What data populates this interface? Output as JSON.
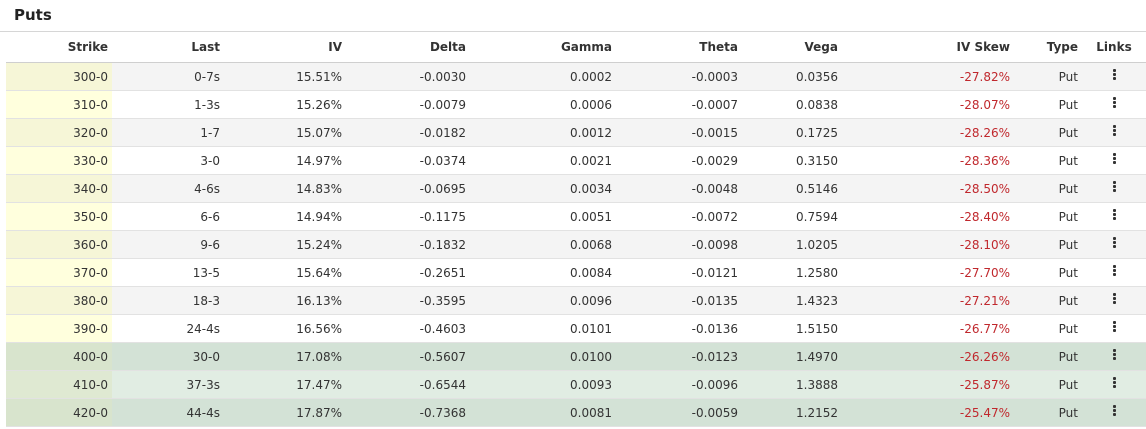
{
  "panel": {
    "title": "Puts"
  },
  "table": {
    "columns": [
      "Strike",
      "Last",
      "IV",
      "Delta",
      "Gamma",
      "Theta",
      "Vega",
      "IV Skew",
      "Type",
      "Links"
    ],
    "rows": [
      {
        "strike": "300-0",
        "last": "0-7s",
        "iv": "15.51%",
        "delta": "-0.0030",
        "gamma": "0.0002",
        "theta": "-0.0003",
        "vega": "0.0356",
        "skew": "-27.82%",
        "type": "Put",
        "itm": false
      },
      {
        "strike": "310-0",
        "last": "1-3s",
        "iv": "15.26%",
        "delta": "-0.0079",
        "gamma": "0.0006",
        "theta": "-0.0007",
        "vega": "0.0838",
        "skew": "-28.07%",
        "type": "Put",
        "itm": false
      },
      {
        "strike": "320-0",
        "last": "1-7",
        "iv": "15.07%",
        "delta": "-0.0182",
        "gamma": "0.0012",
        "theta": "-0.0015",
        "vega": "0.1725",
        "skew": "-28.26%",
        "type": "Put",
        "itm": false
      },
      {
        "strike": "330-0",
        "last": "3-0",
        "iv": "14.97%",
        "delta": "-0.0374",
        "gamma": "0.0021",
        "theta": "-0.0029",
        "vega": "0.3150",
        "skew": "-28.36%",
        "type": "Put",
        "itm": false
      },
      {
        "strike": "340-0",
        "last": "4-6s",
        "iv": "14.83%",
        "delta": "-0.0695",
        "gamma": "0.0034",
        "theta": "-0.0048",
        "vega": "0.5146",
        "skew": "-28.50%",
        "type": "Put",
        "itm": false
      },
      {
        "strike": "350-0",
        "last": "6-6",
        "iv": "14.94%",
        "delta": "-0.1175",
        "gamma": "0.0051",
        "theta": "-0.0072",
        "vega": "0.7594",
        "skew": "-28.40%",
        "type": "Put",
        "itm": false
      },
      {
        "strike": "360-0",
        "last": "9-6",
        "iv": "15.24%",
        "delta": "-0.1832",
        "gamma": "0.0068",
        "theta": "-0.0098",
        "vega": "1.0205",
        "skew": "-28.10%",
        "type": "Put",
        "itm": false
      },
      {
        "strike": "370-0",
        "last": "13-5",
        "iv": "15.64%",
        "delta": "-0.2651",
        "gamma": "0.0084",
        "theta": "-0.0121",
        "vega": "1.2580",
        "skew": "-27.70%",
        "type": "Put",
        "itm": false
      },
      {
        "strike": "380-0",
        "last": "18-3",
        "iv": "16.13%",
        "delta": "-0.3595",
        "gamma": "0.0096",
        "theta": "-0.0135",
        "vega": "1.4323",
        "skew": "-27.21%",
        "type": "Put",
        "itm": false
      },
      {
        "strike": "390-0",
        "last": "24-4s",
        "iv": "16.56%",
        "delta": "-0.4603",
        "gamma": "0.0101",
        "theta": "-0.0136",
        "vega": "1.5150",
        "skew": "-26.77%",
        "type": "Put",
        "itm": false
      },
      {
        "strike": "400-0",
        "last": "30-0",
        "iv": "17.08%",
        "delta": "-0.5607",
        "gamma": "0.0100",
        "theta": "-0.0123",
        "vega": "1.4970",
        "skew": "-26.26%",
        "type": "Put",
        "itm": true
      },
      {
        "strike": "410-0",
        "last": "37-3s",
        "iv": "17.47%",
        "delta": "-0.6544",
        "gamma": "0.0093",
        "theta": "-0.0096",
        "vega": "1.3888",
        "skew": "-25.87%",
        "type": "Put",
        "itm": true
      },
      {
        "strike": "420-0",
        "last": "44-4s",
        "iv": "17.87%",
        "delta": "-0.7368",
        "gamma": "0.0081",
        "theta": "-0.0059",
        "vega": "1.2152",
        "skew": "-25.47%",
        "type": "Put",
        "itm": true
      }
    ]
  },
  "colors": {
    "skew_negative": "#c0282d",
    "itm_row": "#d3e2d6",
    "strike_highlight": "#ffffdd"
  },
  "icons": {
    "links": "kebab-menu-icon"
  }
}
